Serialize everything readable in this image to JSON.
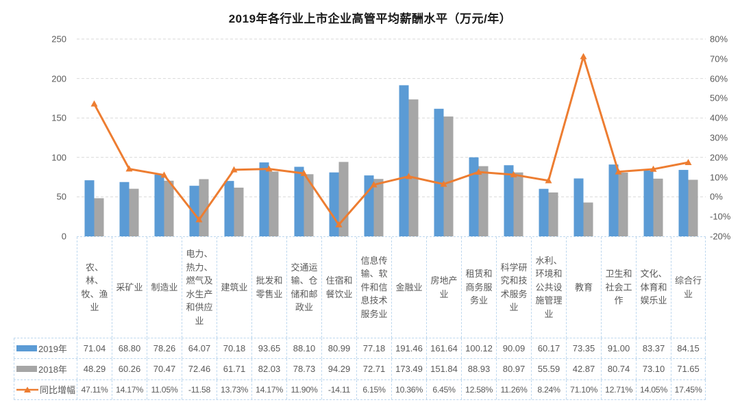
{
  "title": "2019年各行业上市企业高管平均薪酬水平（万元/年）",
  "chart_data": {
    "type": "bar",
    "subtype": "bar-line-combo",
    "title": "2019年各行业上市企业高管平均薪酬水平（万元/年）",
    "categories": [
      "农、林、牧、渔业",
      "采矿业",
      "制造业",
      "电力、热力、燃气及水生产和供应业",
      "建筑业",
      "批发和零售业",
      "交通运输、仓储和邮政业",
      "住宿和餐饮业",
      "信息传输、软件和信息技术服务业",
      "金融业",
      "房地产业",
      "租赁和商务服务业",
      "科学研究和技术服务业",
      "水利、环境和公共设施管理业",
      "教育",
      "卫生和社会工作",
      "文化、体育和娱乐业",
      "综合行业"
    ],
    "series": [
      {
        "name": "2019年",
        "type": "bar",
        "axis": "left",
        "color": "#5B9BD5",
        "values": [
          71.04,
          68.8,
          78.26,
          64.07,
          70.18,
          93.65,
          88.1,
          80.99,
          77.18,
          191.46,
          161.64,
          100.12,
          90.09,
          60.17,
          73.35,
          91.0,
          83.37,
          84.15
        ]
      },
      {
        "name": "2018年",
        "type": "bar",
        "axis": "left",
        "color": "#A6A6A6",
        "values": [
          48.29,
          60.26,
          70.47,
          72.46,
          61.71,
          82.03,
          78.73,
          94.29,
          72.71,
          173.49,
          151.84,
          88.93,
          80.97,
          55.59,
          42.87,
          80.74,
          73.1,
          71.65
        ]
      },
      {
        "name": "同比增幅",
        "type": "line",
        "axis": "right",
        "color": "#ED7D31",
        "marker": "triangle",
        "values": [
          47.11,
          14.17,
          11.05,
          -11.58,
          13.73,
          14.17,
          11.9,
          -14.11,
          6.15,
          10.36,
          6.45,
          12.58,
          11.26,
          8.24,
          71.1,
          12.71,
          14.05,
          17.45
        ]
      }
    ],
    "left_axis": {
      "min": 0,
      "max": 250,
      "step": 50,
      "ticks_bottom_to_top": [
        "0",
        "50",
        "100",
        "150",
        "200",
        "250"
      ]
    },
    "right_axis": {
      "min": -20,
      "max": 80,
      "step": 10,
      "ticks_top_to_bottom": [
        "80%",
        "70%",
        "60%",
        "50%",
        "40%",
        "30%",
        "20%",
        "10%",
        "0%",
        "-10%",
        "-20%"
      ]
    },
    "grid": true,
    "gridline_color": "#D9D9D9",
    "table_border_color": "#BDD7EE",
    "legend_position": "table-left"
  },
  "table": {
    "rows": [
      {
        "id": "y2019",
        "legend": "2019年",
        "swatch": "bar",
        "color": "#5B9BD5",
        "values": [
          "71.04",
          "68.80",
          "78.26",
          "64.07",
          "70.18",
          "93.65",
          "88.10",
          "80.99",
          "77.18",
          "191.46",
          "161.64",
          "100.12",
          "90.09",
          "60.17",
          "73.35",
          "91.00",
          "83.37",
          "84.15"
        ]
      },
      {
        "id": "y2018",
        "legend": "2018年",
        "swatch": "bar",
        "color": "#A6A6A6",
        "values": [
          "48.29",
          "60.26",
          "70.47",
          "72.46",
          "61.71",
          "82.03",
          "78.73",
          "94.29",
          "72.71",
          "173.49",
          "151.84",
          "88.93",
          "80.97",
          "55.59",
          "42.87",
          "80.74",
          "73.10",
          "71.65"
        ]
      },
      {
        "id": "yoy",
        "legend": "同比增幅",
        "swatch": "line",
        "color": "#ED7D31",
        "values": [
          "47.11%",
          "14.17%",
          "11.05%",
          "-11.58",
          "13.73%",
          "14.17%",
          "11.90%",
          "-14.11",
          "6.15%",
          "10.36%",
          "6.45%",
          "12.58%",
          "11.26%",
          "8.24%",
          "71.10%",
          "12.71%",
          "14.05%",
          "17.45%"
        ]
      }
    ]
  }
}
